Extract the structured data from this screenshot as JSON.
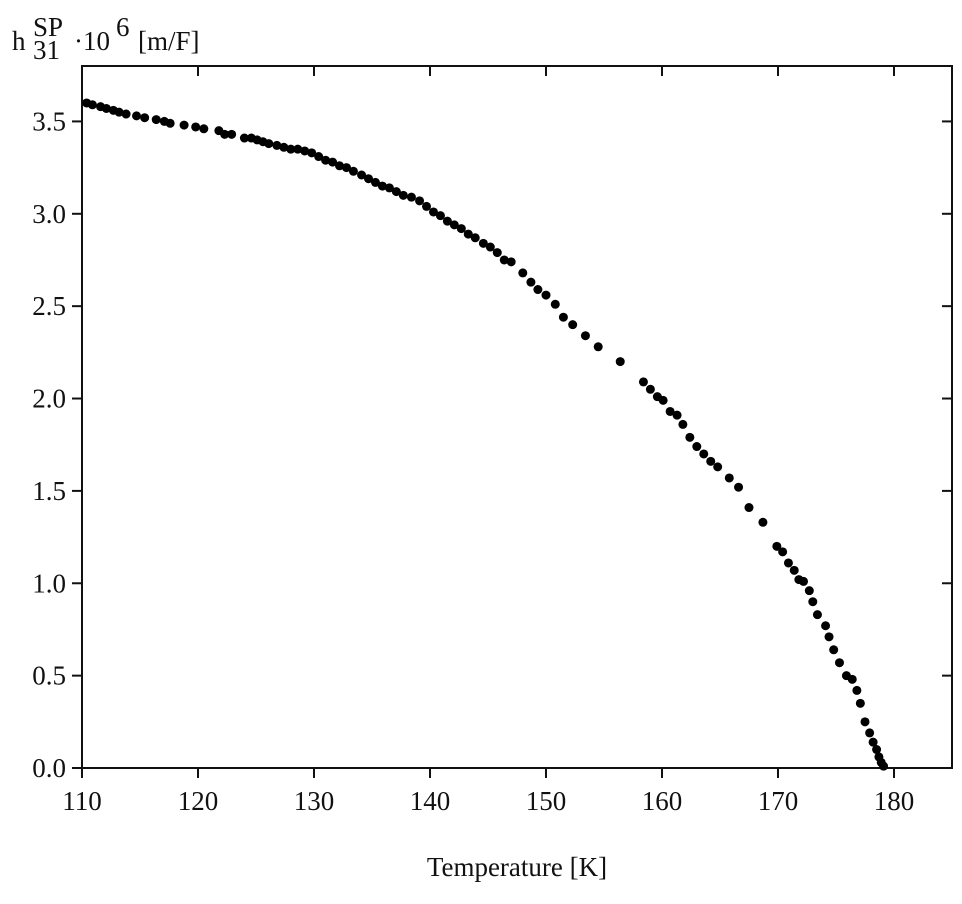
{
  "chart_data": {
    "type": "scatter",
    "xlabel": "Temperature [K]",
    "ylabel": {
      "base": "h",
      "sup": "SP",
      "sub": "31",
      "factor": "·10",
      "exponent": "6",
      "unit": "[m/F]"
    },
    "color": "#000000",
    "xlim": [
      110,
      185
    ],
    "xticks": [
      110,
      120,
      130,
      140,
      150,
      160,
      170,
      180
    ],
    "ylim": [
      0,
      3.8
    ],
    "yticks": [
      {
        "value": 0,
        "label": "0.0"
      },
      {
        "value": 0.5,
        "label": "0.5"
      },
      {
        "value": 1,
        "label": "1.0"
      },
      {
        "value": 1.5,
        "label": "1.5"
      },
      {
        "value": 2,
        "label": "2.0"
      },
      {
        "value": 2.5,
        "label": "2.5"
      },
      {
        "value": 3,
        "label": "3.0"
      },
      {
        "value": 3.5,
        "label": "3.5"
      }
    ],
    "x": [
      110.4,
      110.9,
      111.6,
      112.1,
      112.7,
      113.2,
      113.8,
      114.7,
      115.4,
      116.4,
      117.1,
      117.6,
      118.8,
      119.8,
      120.5,
      121.8,
      122.3,
      122.9,
      124.0,
      124.6,
      125.1,
      125.6,
      126.1,
      126.8,
      127.4,
      128.0,
      128.6,
      129.2,
      129.8,
      130.4,
      131.0,
      131.6,
      132.2,
      132.8,
      133.4,
      134.1,
      134.7,
      135.3,
      135.9,
      136.5,
      137.1,
      137.7,
      138.4,
      139.1,
      139.7,
      140.3,
      140.9,
      141.5,
      142.1,
      142.7,
      143.3,
      143.9,
      144.6,
      145.2,
      145.8,
      146.4,
      147.0,
      148.0,
      148.7,
      149.3,
      150.0,
      150.8,
      151.5,
      152.3,
      153.4,
      154.5,
      156.4,
      158.4,
      159.0,
      159.6,
      160.1,
      160.7,
      161.3,
      161.8,
      162.4,
      163.0,
      163.6,
      164.2,
      164.8,
      165.8,
      166.6,
      167.5,
      168.7,
      169.9,
      170.4,
      170.9,
      171.4,
      171.8,
      172.2,
      172.7,
      173.0,
      173.4,
      174.1,
      174.4,
      174.8,
      175.3,
      175.9,
      176.4,
      176.8,
      177.1,
      177.5,
      177.9,
      178.2,
      178.5,
      178.7,
      178.9,
      179.1
    ],
    "values": [
      3.6,
      3.59,
      3.58,
      3.57,
      3.56,
      3.55,
      3.54,
      3.53,
      3.52,
      3.51,
      3.5,
      3.49,
      3.48,
      3.47,
      3.46,
      3.45,
      3.43,
      3.43,
      3.41,
      3.41,
      3.4,
      3.39,
      3.38,
      3.37,
      3.36,
      3.35,
      3.35,
      3.34,
      3.33,
      3.31,
      3.29,
      3.28,
      3.26,
      3.25,
      3.23,
      3.21,
      3.19,
      3.17,
      3.15,
      3.14,
      3.12,
      3.1,
      3.09,
      3.07,
      3.04,
      3.01,
      2.99,
      2.96,
      2.94,
      2.92,
      2.89,
      2.87,
      2.84,
      2.82,
      2.79,
      2.75,
      2.74,
      2.68,
      2.63,
      2.59,
      2.56,
      2.51,
      2.44,
      2.4,
      2.34,
      2.28,
      2.2,
      2.09,
      2.05,
      2.01,
      1.99,
      1.93,
      1.91,
      1.86,
      1.79,
      1.74,
      1.7,
      1.66,
      1.63,
      1.57,
      1.52,
      1.41,
      1.33,
      1.2,
      1.17,
      1.11,
      1.07,
      1.02,
      1.01,
      0.96,
      0.9,
      0.83,
      0.77,
      0.71,
      0.64,
      0.57,
      0.5,
      0.48,
      0.42,
      0.35,
      0.25,
      0.19,
      0.14,
      0.1,
      0.06,
      0.03,
      0.01
    ]
  }
}
